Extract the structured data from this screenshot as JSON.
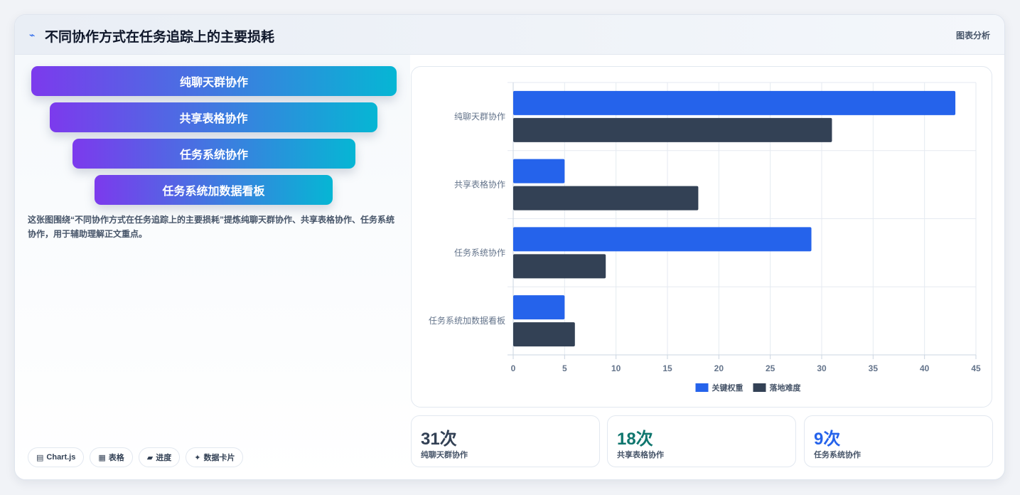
{
  "header": {
    "icon": "chart-line-icon",
    "title": "不同协作方式在任务追踪上的主要损耗",
    "tag": "图表分析"
  },
  "funnel": {
    "items": [
      {
        "label": "纯聊天群协作"
      },
      {
        "label": "共享表格协作"
      },
      {
        "label": "任务系统协作"
      },
      {
        "label": "任务系统加数据看板"
      }
    ]
  },
  "description": "这张图围绕“不同协作方式在任务追踪上的主要损耗”提炼纯聊天群协作、共享表格协作、任务系统协作，用于辅助理解正文重点。",
  "chips": [
    {
      "icon": "chart-icon",
      "glyph": "▤",
      "label": "Chart.js"
    },
    {
      "icon": "table-icon",
      "glyph": "▦",
      "label": "表格"
    },
    {
      "icon": "progress-icon",
      "glyph": "▰",
      "label": "进度"
    },
    {
      "icon": "data-card-icon",
      "glyph": "✦",
      "label": "数据卡片"
    }
  ],
  "stats": [
    {
      "value": "31次",
      "label": "纯聊天群协作",
      "color": "#334155"
    },
    {
      "value": "18次",
      "label": "共享表格协作",
      "color": "#0f766e"
    },
    {
      "value": "9次",
      "label": "任务系统协作",
      "color": "#2563eb"
    }
  ],
  "chart_data": {
    "type": "bar",
    "orientation": "horizontal",
    "categories": [
      "纯聊天群协作",
      "共享表格协作",
      "任务系统协作",
      "任务系统加数据看板"
    ],
    "series": [
      {
        "name": "关键权重",
        "values": [
          43,
          5,
          29,
          5
        ],
        "color": "#2563eb"
      },
      {
        "name": "落地难度",
        "values": [
          31,
          18,
          9,
          6
        ],
        "color": "#334155"
      }
    ],
    "xlim": [
      0,
      45
    ],
    "xticks": [
      0,
      5,
      10,
      15,
      20,
      25,
      30,
      35,
      40,
      45
    ],
    "grid": true,
    "legend": "bottom"
  }
}
